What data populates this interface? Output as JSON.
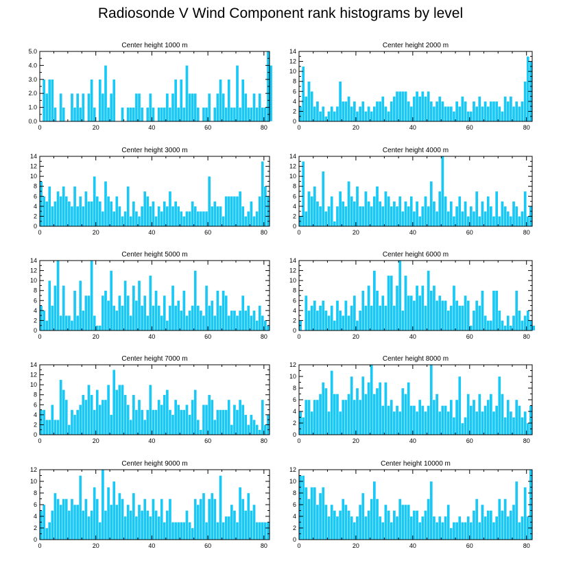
{
  "figure": {
    "title": "Radiosonde V Wind Component rank histograms by level",
    "bar_color": "#1ac8f5",
    "frame_color": "#000000"
  },
  "chart_data": [
    {
      "type": "bar",
      "title": "Center height 1000 m",
      "xlim": [
        0,
        82
      ],
      "ylim": [
        0,
        5
      ],
      "xticks": [
        0,
        20,
        40,
        60,
        80
      ],
      "yticks": [
        0,
        1,
        2,
        3,
        4,
        5
      ],
      "ytick_labels": [
        "0.0",
        "1.0",
        "2.0",
        "3.0",
        "4.0",
        "5.0"
      ],
      "values": [
        0,
        3,
        2,
        3,
        3,
        1,
        0,
        2,
        1,
        0,
        0,
        2,
        1,
        2,
        1,
        2,
        0,
        2,
        3,
        1,
        0,
        3,
        2,
        4,
        1,
        2,
        3,
        0,
        0,
        1,
        0,
        1,
        1,
        1,
        2,
        2,
        1,
        0,
        1,
        2,
        1,
        0,
        1,
        1,
        1,
        2,
        1,
        2,
        3,
        1,
        3,
        1,
        4,
        2,
        2,
        2,
        1,
        0,
        1,
        1,
        2,
        0,
        1,
        2,
        3,
        2,
        1,
        3,
        1,
        1,
        4,
        1,
        3,
        2,
        1,
        1,
        2,
        1,
        2,
        1,
        1,
        5,
        4
      ]
    },
    {
      "type": "bar",
      "title": "Center height 2000 m",
      "xlim": [
        0,
        82
      ],
      "ylim": [
        0,
        14
      ],
      "xticks": [
        0,
        20,
        40,
        60,
        80
      ],
      "yticks": [
        0,
        2,
        4,
        6,
        8,
        10,
        12,
        14
      ],
      "ytick_labels": [
        "0",
        "2",
        "4",
        "6",
        "8",
        "10",
        "12",
        "14"
      ],
      "values": [
        3,
        11,
        5,
        8,
        6,
        3,
        4,
        2,
        3,
        1,
        2,
        3,
        2,
        3,
        8,
        4,
        4,
        5,
        3,
        4,
        2,
        3,
        4,
        2,
        3,
        2,
        3,
        4,
        4,
        5,
        3,
        2,
        4,
        5,
        6,
        6,
        6,
        6,
        4,
        3,
        5,
        6,
        5,
        6,
        5,
        6,
        4,
        3,
        4,
        5,
        4,
        3,
        3,
        3,
        2,
        4,
        3,
        5,
        4,
        2,
        2,
        4,
        3,
        5,
        3,
        4,
        3,
        4,
        4,
        4,
        3,
        2,
        5,
        4,
        5,
        3,
        4,
        3,
        4,
        8,
        13,
        12,
        0
      ]
    },
    {
      "type": "bar",
      "title": "Center height 3000 m",
      "xlim": [
        0,
        82
      ],
      "ylim": [
        0,
        14
      ],
      "xticks": [
        0,
        20,
        40,
        60,
        80
      ],
      "yticks": [
        0,
        2,
        4,
        6,
        8,
        10,
        12,
        14
      ],
      "ytick_labels": [
        "0",
        "2",
        "4",
        "6",
        "8",
        "10",
        "12",
        "14"
      ],
      "values": [
        9,
        6,
        5,
        8,
        4,
        5,
        7,
        6,
        8,
        6,
        5,
        4,
        8,
        4,
        6,
        4,
        7,
        5,
        5,
        10,
        6,
        5,
        3,
        9,
        6,
        5,
        3,
        6,
        4,
        2,
        3,
        8,
        2,
        5,
        3,
        2,
        4,
        7,
        6,
        4,
        5,
        2,
        4,
        3,
        5,
        4,
        7,
        4,
        5,
        4,
        3,
        2,
        3,
        3,
        5,
        4,
        3,
        3,
        3,
        3,
        10,
        4,
        5,
        4,
        4,
        2,
        6,
        6,
        6,
        6,
        6,
        7,
        4,
        2,
        3,
        5,
        2,
        3,
        6,
        13,
        8,
        6,
        0
      ]
    },
    {
      "type": "bar",
      "title": "Center height 4000 m",
      "xlim": [
        0,
        82
      ],
      "ylim": [
        0,
        14
      ],
      "xticks": [
        0,
        20,
        40,
        60,
        80
      ],
      "yticks": [
        0,
        2,
        4,
        6,
        8,
        10,
        12,
        14
      ],
      "ytick_labels": [
        "0",
        "2",
        "4",
        "6",
        "8",
        "10",
        "12",
        "14"
      ],
      "values": [
        2,
        13,
        3,
        7,
        6,
        8,
        5,
        4,
        11,
        3,
        4,
        6,
        1,
        4,
        7,
        5,
        4,
        9,
        6,
        5,
        8,
        4,
        4,
        7,
        5,
        4,
        6,
        8,
        5,
        4,
        7,
        6,
        4,
        5,
        4,
        6,
        3,
        5,
        4,
        6,
        3,
        5,
        2,
        4,
        6,
        4,
        9,
        5,
        3,
        7,
        14,
        6,
        3,
        5,
        2,
        4,
        6,
        3,
        5,
        2,
        4,
        3,
        7,
        2,
        5,
        3,
        6,
        4,
        2,
        7,
        2,
        5,
        4,
        3,
        2,
        5,
        4,
        2,
        3,
        7,
        2,
        4,
        0
      ]
    },
    {
      "type": "bar",
      "title": "Center height 5000 m",
      "xlim": [
        0,
        82
      ],
      "ylim": [
        0,
        14
      ],
      "xticks": [
        0,
        20,
        40,
        60,
        80
      ],
      "yticks": [
        0,
        2,
        4,
        6,
        8,
        10,
        12,
        14
      ],
      "ytick_labels": [
        "0",
        "2",
        "4",
        "6",
        "8",
        "10",
        "12",
        "14"
      ],
      "values": [
        5,
        4,
        2,
        10,
        5,
        9,
        14,
        3,
        9,
        3,
        3,
        2,
        8,
        3,
        10,
        4,
        7,
        7,
        14,
        3,
        1,
        1,
        7,
        8,
        6,
        12,
        5,
        4,
        7,
        5,
        10,
        7,
        3,
        9,
        6,
        10,
        5,
        7,
        3,
        11,
        5,
        8,
        5,
        3,
        7,
        2,
        5,
        9,
        5,
        6,
        4,
        8,
        3,
        4,
        5,
        12,
        5,
        4,
        3,
        9,
        5,
        6,
        3,
        8,
        5,
        8,
        7,
        3,
        4,
        4,
        3,
        4,
        7,
        4,
        5,
        3,
        4,
        2,
        5,
        3,
        2,
        1,
        0
      ]
    },
    {
      "type": "bar",
      "title": "Center height 6000 m",
      "xlim": [
        0,
        82
      ],
      "ylim": [
        0,
        14
      ],
      "xticks": [
        0,
        20,
        40,
        60,
        80
      ],
      "yticks": [
        0,
        2,
        4,
        6,
        8,
        10,
        12,
        14
      ],
      "ytick_labels": [
        "0",
        "2",
        "4",
        "6",
        "8",
        "10",
        "12",
        "14"
      ],
      "values": [
        2,
        0,
        7,
        4,
        5,
        6,
        4,
        5,
        6,
        4,
        3,
        5,
        2,
        6,
        4,
        3,
        6,
        3,
        5,
        7,
        2,
        4,
        8,
        5,
        9,
        5,
        12,
        8,
        5,
        7,
        5,
        11,
        11,
        5,
        9,
        14,
        4,
        11,
        7,
        7,
        6,
        9,
        7,
        9,
        5,
        12,
        8,
        9,
        6,
        7,
        6,
        6,
        4,
        5,
        9,
        6,
        5,
        5,
        7,
        6,
        1,
        4,
        6,
        5,
        8,
        3,
        2,
        2,
        8,
        8,
        4,
        2,
        1,
        3,
        1,
        3,
        8,
        4,
        2,
        3,
        4,
        2,
        1
      ]
    },
    {
      "type": "bar",
      "title": "Center height 7000 m",
      "xlim": [
        0,
        82
      ],
      "ylim": [
        0,
        14
      ],
      "xticks": [
        0,
        20,
        40,
        60,
        80
      ],
      "yticks": [
        0,
        2,
        4,
        6,
        8,
        10,
        12,
        14
      ],
      "ytick_labels": [
        "0",
        "2",
        "4",
        "6",
        "8",
        "10",
        "12",
        "14"
      ],
      "values": [
        5,
        5,
        3,
        3,
        6,
        3,
        3,
        11,
        9,
        7,
        2,
        5,
        4,
        5,
        6,
        8,
        7,
        10,
        8,
        5,
        9,
        6,
        7,
        7,
        10,
        4,
        13,
        9,
        10,
        10,
        8,
        6,
        3,
        8,
        5,
        7,
        5,
        3,
        5,
        10,
        5,
        5,
        7,
        6,
        8,
        9,
        5,
        4,
        7,
        6,
        5,
        5,
        6,
        4,
        7,
        9,
        3,
        1,
        6,
        6,
        8,
        7,
        3,
        5,
        5,
        5,
        5,
        7,
        2,
        6,
        5,
        7,
        6,
        4,
        2,
        4,
        3,
        2,
        1,
        7,
        2,
        4,
        0
      ]
    },
    {
      "type": "bar",
      "title": "Center height 8000 m",
      "xlim": [
        0,
        82
      ],
      "ylim": [
        0,
        12
      ],
      "xticks": [
        0,
        20,
        40,
        60,
        80
      ],
      "yticks": [
        0,
        2,
        4,
        6,
        8,
        10,
        12
      ],
      "ytick_labels": [
        "0",
        "2",
        "4",
        "6",
        "8",
        "10",
        "12"
      ],
      "values": [
        4,
        3,
        6,
        6,
        4,
        6,
        6,
        7,
        9,
        8,
        4,
        11,
        7,
        7,
        4,
        6,
        6,
        7,
        10,
        6,
        8,
        6,
        10,
        7,
        9,
        12,
        7,
        8,
        9,
        5,
        9,
        5,
        6,
        4,
        5,
        4,
        8,
        7,
        9,
        5,
        5,
        4,
        6,
        5,
        4,
        5,
        12,
        6,
        7,
        4,
        5,
        5,
        4,
        6,
        3,
        6,
        10,
        2,
        3,
        7,
        5,
        6,
        4,
        7,
        4,
        5,
        6,
        7,
        4,
        5,
        10,
        7,
        3,
        6,
        4,
        3,
        6,
        5,
        3,
        4,
        2,
        5,
        0
      ]
    },
    {
      "type": "bar",
      "title": "Center height 9000 m",
      "xlim": [
        0,
        82
      ],
      "ylim": [
        0,
        12
      ],
      "xticks": [
        0,
        20,
        40,
        60,
        80
      ],
      "yticks": [
        0,
        2,
        4,
        6,
        8,
        10,
        12
      ],
      "ytick_labels": [
        "0",
        "2",
        "4",
        "6",
        "8",
        "10",
        "12"
      ],
      "values": [
        5,
        6,
        2,
        3,
        5,
        8,
        7,
        6,
        7,
        7,
        5,
        7,
        6,
        6,
        11,
        5,
        7,
        4,
        5,
        9,
        7,
        3,
        12,
        5,
        9,
        6,
        10,
        6,
        8,
        7,
        4,
        6,
        5,
        8,
        4,
        6,
        5,
        7,
        5,
        4,
        7,
        5,
        4,
        7,
        3,
        5,
        7,
        3,
        3,
        3,
        3,
        3,
        5,
        3,
        2,
        7,
        6,
        7,
        8,
        3,
        7,
        8,
        7,
        3,
        11,
        3,
        4,
        4,
        6,
        5,
        3,
        9,
        7,
        5,
        8,
        5,
        6,
        3,
        3,
        3,
        3,
        3,
        0
      ]
    },
    {
      "type": "bar",
      "title": "Center height 10000 m",
      "xlim": [
        0,
        82
      ],
      "ylim": [
        0,
        12
      ],
      "xticks": [
        0,
        20,
        40,
        60,
        80
      ],
      "yticks": [
        0,
        2,
        4,
        6,
        8,
        10,
        12
      ],
      "ytick_labels": [
        "0",
        "2",
        "4",
        "6",
        "8",
        "10",
        "12"
      ],
      "values": [
        11,
        11,
        9,
        7,
        9,
        9,
        6,
        8,
        9,
        6,
        4,
        6,
        5,
        4,
        5,
        7,
        6,
        5,
        4,
        3,
        4,
        6,
        8,
        4,
        5,
        7,
        10,
        7,
        4,
        3,
        6,
        5,
        3,
        5,
        4,
        7,
        6,
        6,
        6,
        4,
        5,
        5,
        3,
        4,
        5,
        7,
        10,
        4,
        3,
        4,
        3,
        4,
        6,
        2,
        3,
        3,
        4,
        3,
        3,
        4,
        3,
        5,
        7,
        3,
        6,
        4,
        5,
        5,
        3,
        4,
        7,
        5,
        7,
        4,
        5,
        6,
        10,
        3,
        4,
        9,
        4,
        12,
        0
      ]
    }
  ]
}
